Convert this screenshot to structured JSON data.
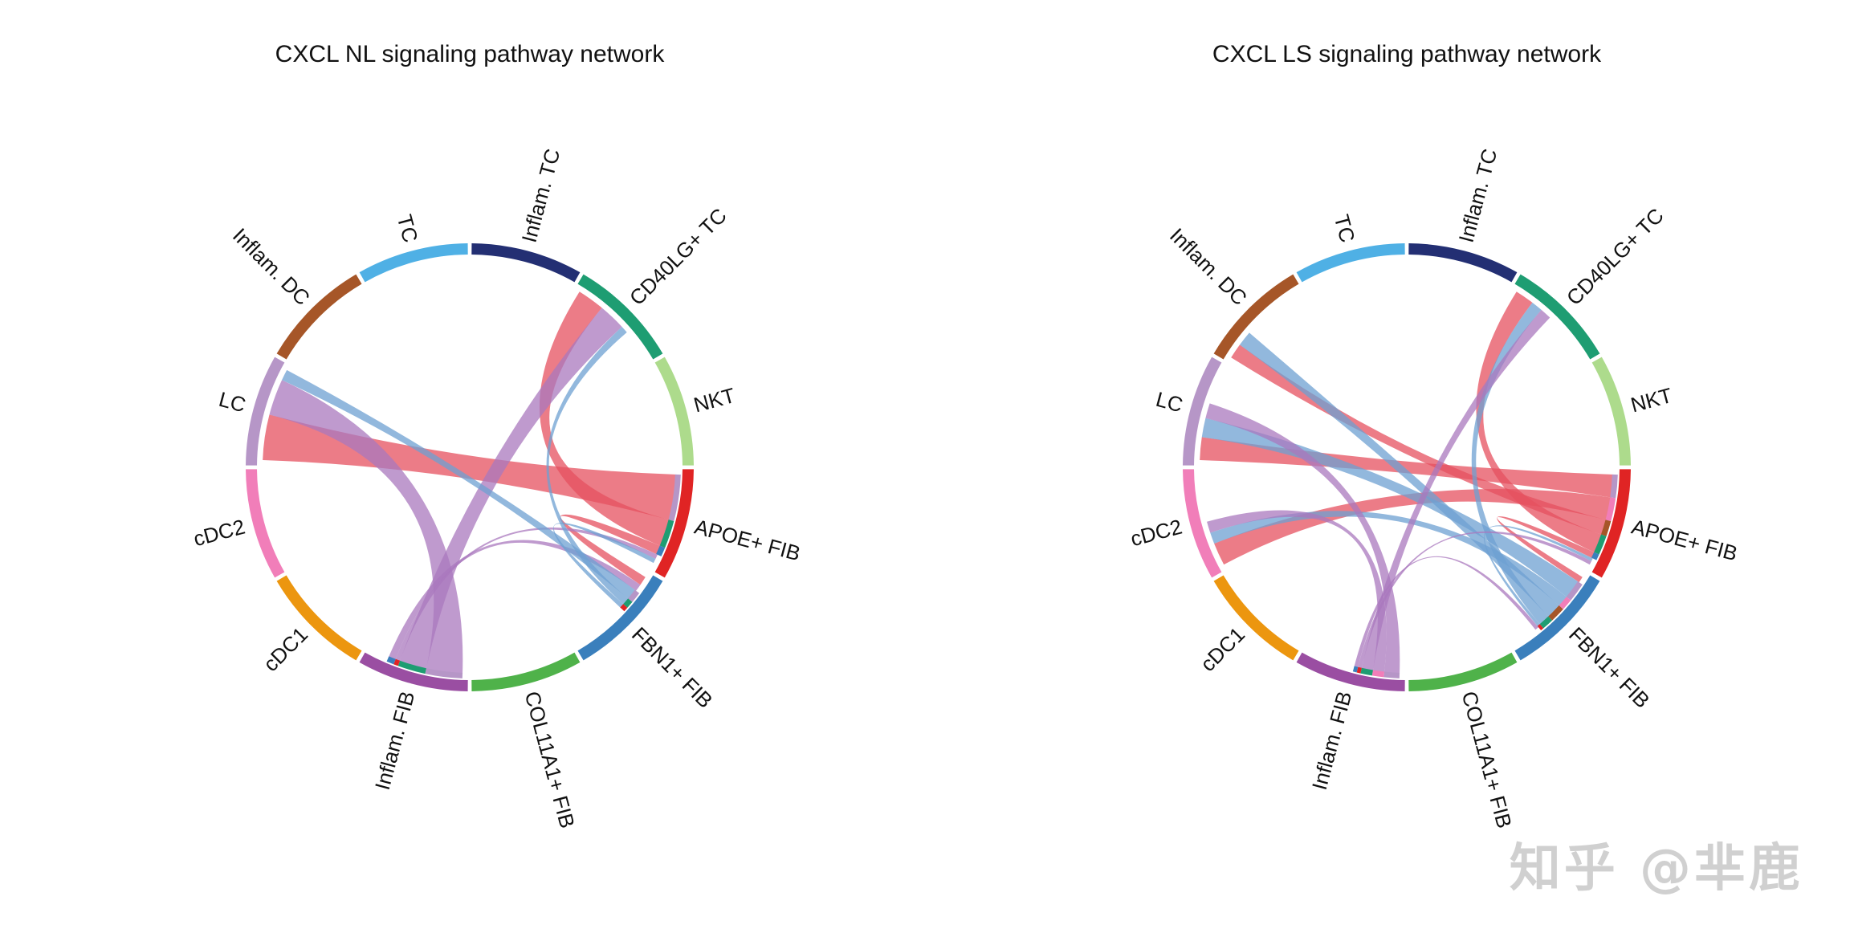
{
  "watermark": "知乎 @芈鹿",
  "colors": {
    "Inflam. TC": "#232f73",
    "CD40LG+ TC": "#1e9d72",
    "NKT": "#addb8c",
    "APOE+ FIB": "#e02424",
    "FBN1+ FIB": "#3a7fbc",
    "COL11A1+ FIB": "#4fb24a",
    "Inflam. FIB": "#9a4ea2",
    "cDC1": "#ec960f",
    "cDC2": "#f17eb9",
    "LC": "#b696c7",
    "Inflam. DC": "#a65628",
    "TC": "#4fb0e5"
  },
  "chart_data": [
    {
      "type": "chord",
      "title": "CXCL NL signaling pathway network",
      "sectors": [
        "Inflam. TC",
        "CD40LG+ TC",
        "NKT",
        "APOE+ FIB",
        "FBN1+ FIB",
        "COL11A1+ FIB",
        "Inflam. FIB",
        "cDC1",
        "cDC2",
        "LC",
        "Inflam. DC",
        "TC"
      ],
      "links": [
        {
          "source": "APOE+ FIB",
          "target": "LC",
          "value": 5.0
        },
        {
          "source": "APOE+ FIB",
          "target": "CD40LG+ TC",
          "value": 3.0
        },
        {
          "source": "APOE+ FIB",
          "target": "FBN1+ FIB",
          "value": 1.0
        },
        {
          "source": "Inflam. FIB",
          "target": "LC",
          "value": 4.0
        },
        {
          "source": "Inflam. FIB",
          "target": "CD40LG+ TC",
          "value": 3.0
        },
        {
          "source": "Inflam. FIB",
          "target": "APOE+ FIB",
          "value": 0.5
        },
        {
          "source": "Inflam. FIB",
          "target": "FBN1+ FIB",
          "value": 0.8
        },
        {
          "source": "FBN1+ FIB",
          "target": "LC",
          "value": 1.2
        },
        {
          "source": "FBN1+ FIB",
          "target": "CD40LG+ TC",
          "value": 0.8
        },
        {
          "source": "FBN1+ FIB",
          "target": "APOE+ FIB",
          "value": 0.5
        }
      ]
    },
    {
      "type": "chord",
      "title": "CXCL LS signaling pathway network",
      "sectors": [
        "Inflam. TC",
        "CD40LG+ TC",
        "NKT",
        "APOE+ FIB",
        "FBN1+ FIB",
        "COL11A1+ FIB",
        "Inflam. FIB",
        "cDC1",
        "cDC2",
        "LC",
        "Inflam. DC",
        "TC"
      ],
      "links": [
        {
          "source": "APOE+ FIB",
          "target": "LC",
          "value": 3.0
        },
        {
          "source": "APOE+ FIB",
          "target": "cDC2",
          "value": 3.0
        },
        {
          "source": "APOE+ FIB",
          "target": "Inflam. DC",
          "value": 2.0
        },
        {
          "source": "APOE+ FIB",
          "target": "CD40LG+ TC",
          "value": 2.5
        },
        {
          "source": "APOE+ FIB",
          "target": "FBN1+ FIB",
          "value": 0.8
        },
        {
          "source": "FBN1+ FIB",
          "target": "LC",
          "value": 2.5
        },
        {
          "source": "FBN1+ FIB",
          "target": "cDC2",
          "value": 1.5
        },
        {
          "source": "FBN1+ FIB",
          "target": "Inflam. DC",
          "value": 2.0
        },
        {
          "source": "FBN1+ FIB",
          "target": "CD40LG+ TC",
          "value": 1.5
        },
        {
          "source": "FBN1+ FIB",
          "target": "APOE+ FIB",
          "value": 0.4
        },
        {
          "source": "Inflam. FIB",
          "target": "LC",
          "value": 2.0
        },
        {
          "source": "Inflam. FIB",
          "target": "cDC2",
          "value": 1.5
        },
        {
          "source": "Inflam. FIB",
          "target": "CD40LG+ TC",
          "value": 1.5
        },
        {
          "source": "Inflam. FIB",
          "target": "APOE+ FIB",
          "value": 0.5
        },
        {
          "source": "Inflam. FIB",
          "target": "FBN1+ FIB",
          "value": 0.5
        }
      ]
    }
  ]
}
